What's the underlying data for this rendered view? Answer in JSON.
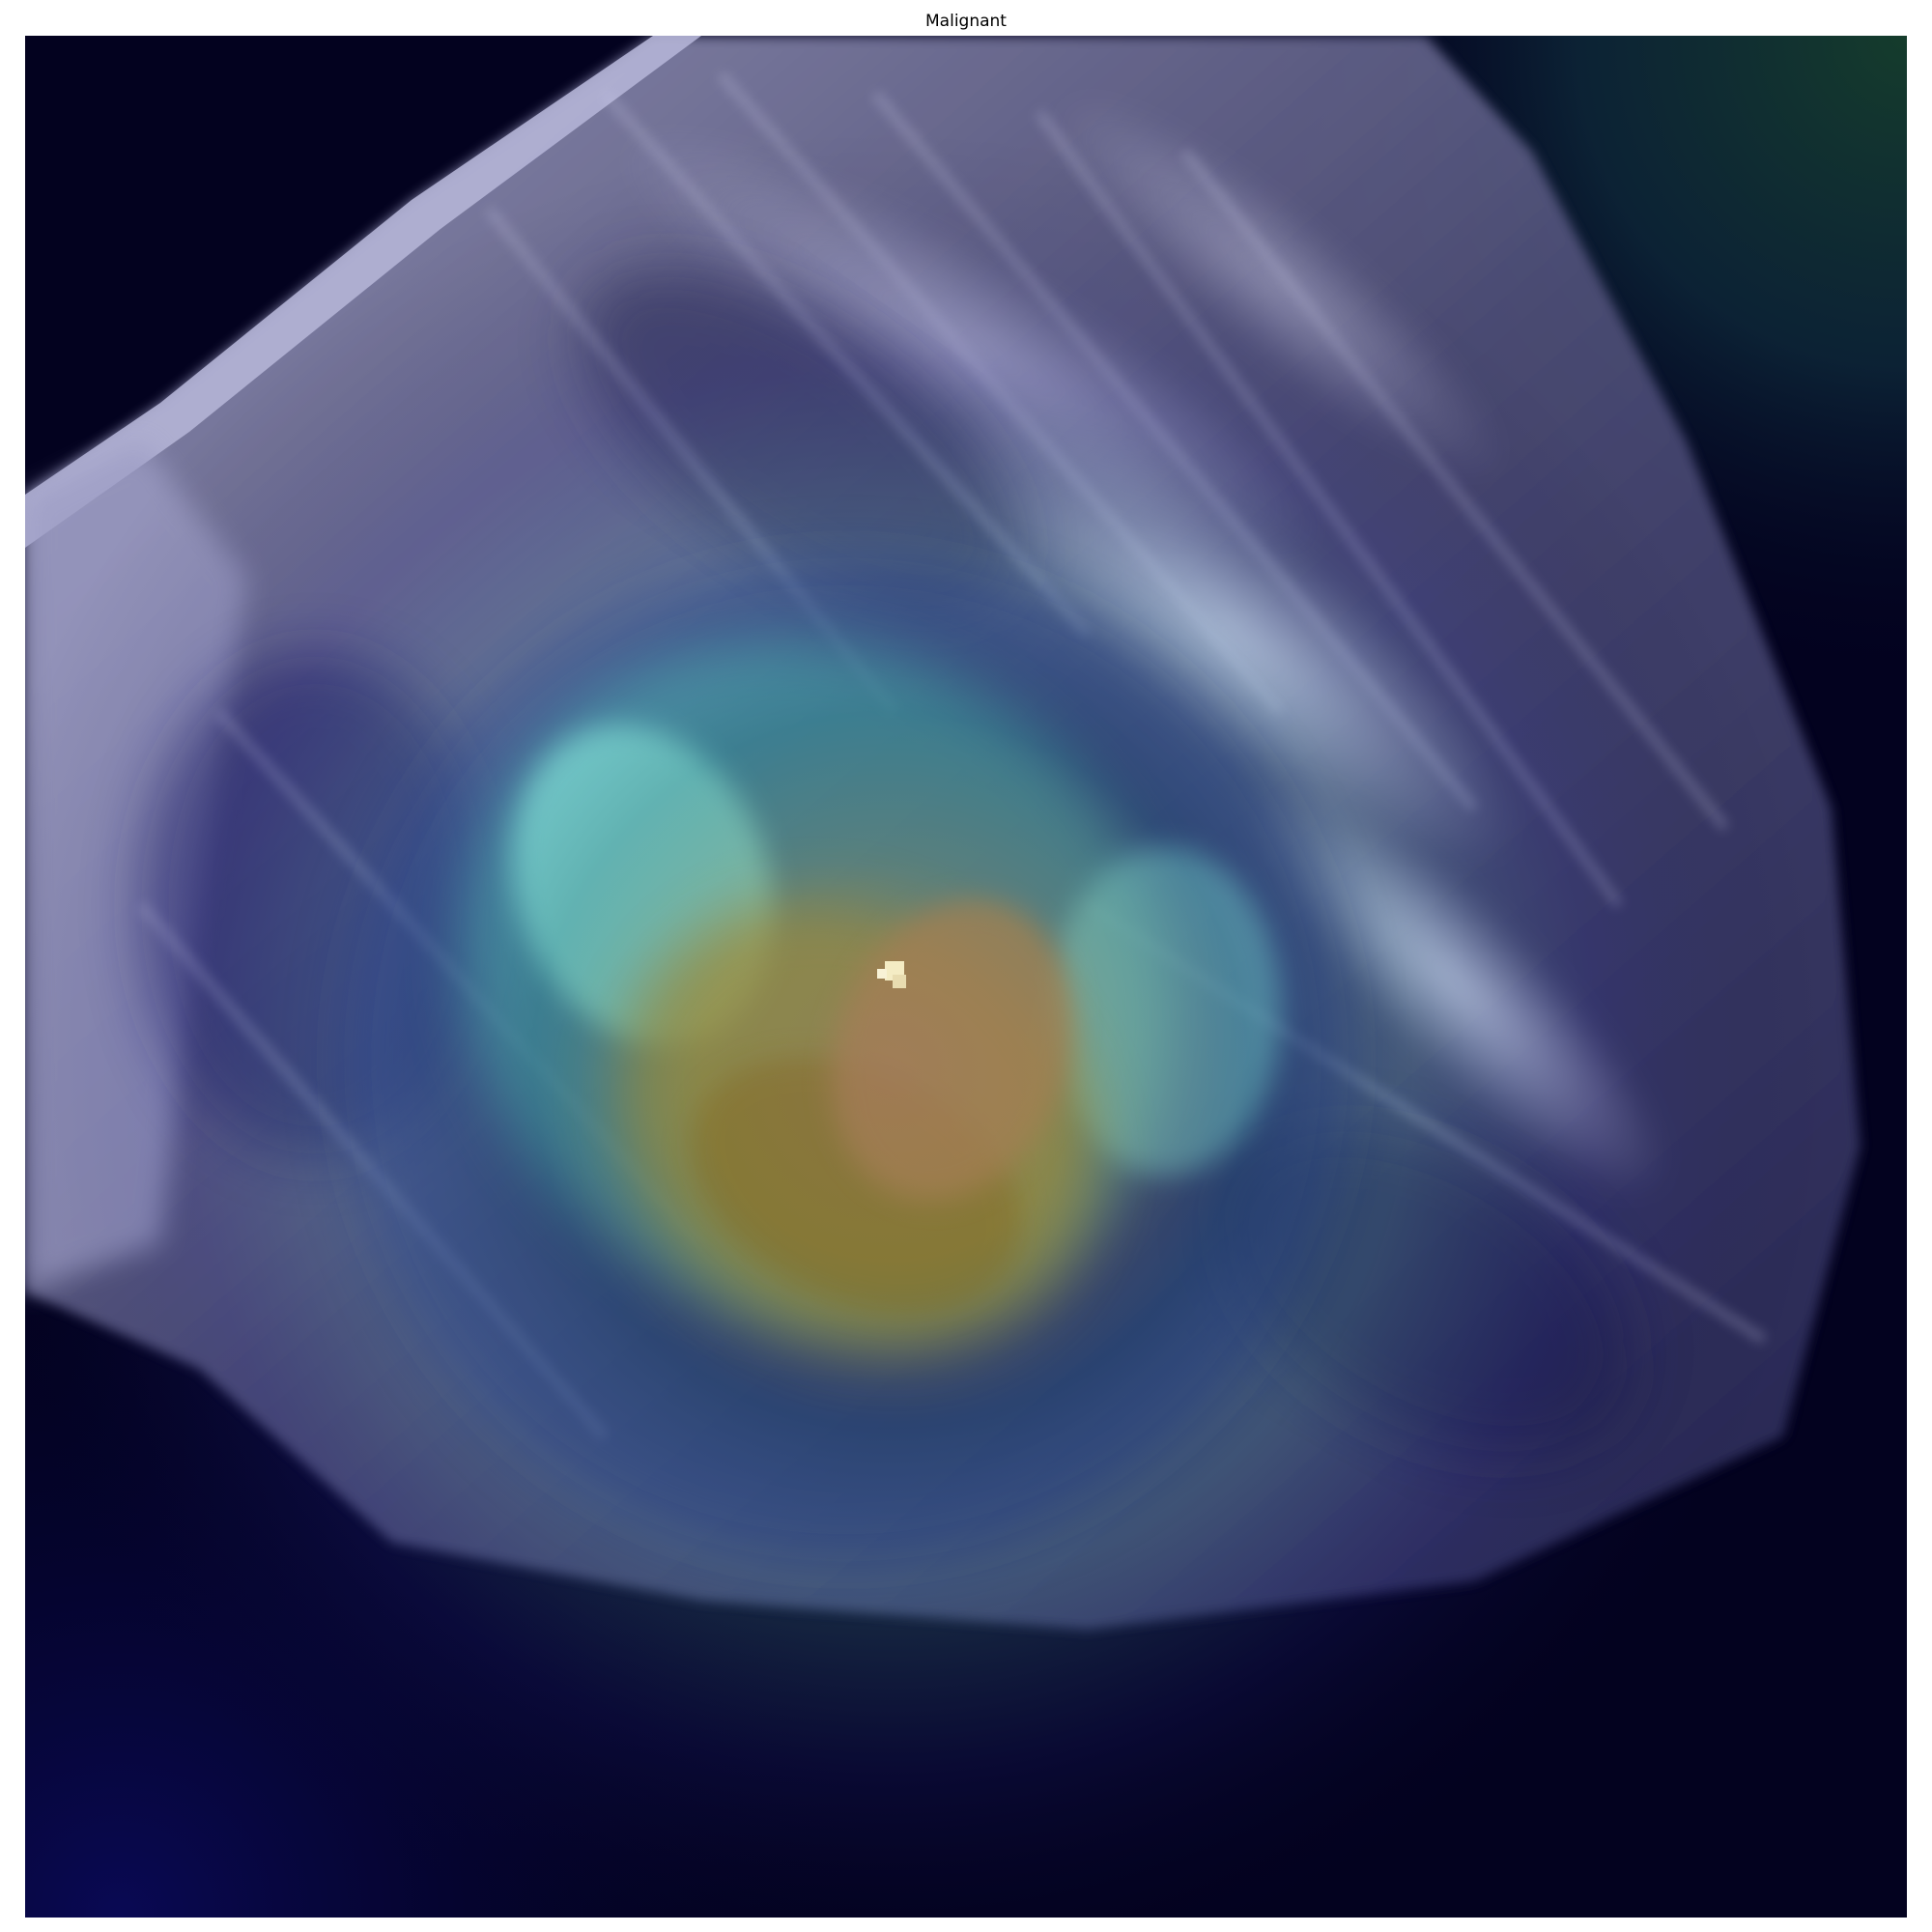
{
  "figure": {
    "title": "Malignant"
  },
  "image": {
    "subject": "mammogram-with-heatmap-overlay",
    "colors": {
      "background": "#03021f",
      "tissue": "#b8b8dc",
      "heat_low": "#1c1f7a",
      "heat_mid": "#6fe0d8",
      "heat_high": "#b79b3a",
      "heat_peak": "#a77a5a",
      "corner_glow": "#153c2c"
    }
  }
}
